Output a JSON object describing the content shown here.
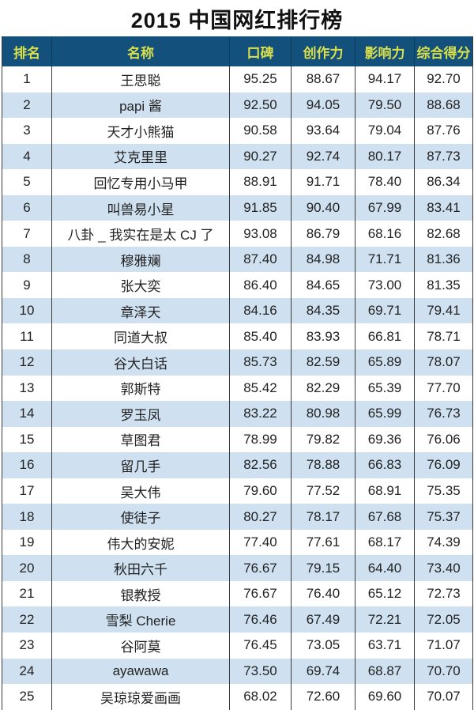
{
  "title": "2015 中国网红排行榜",
  "colors": {
    "header_bg": "#14507c",
    "header_text": "#d8e04b",
    "header_line": "#0d3c5e",
    "row_bg": "#ffffff",
    "row_alt_bg": "#cfe1f0",
    "cell_text": "#222222",
    "grid_line": "#3b3b3b"
  },
  "table": {
    "columns": [
      "排名",
      "名称",
      "口碑",
      "创作力",
      "影响力",
      "综合得分"
    ],
    "rows": [
      [
        "1",
        "王思聪",
        "95.25",
        "88.67",
        "94.17",
        "92.70"
      ],
      [
        "2",
        "papi 酱",
        "92.50",
        "94.05",
        "79.50",
        "88.68"
      ],
      [
        "3",
        "天才小熊猫",
        "90.58",
        "93.64",
        "79.04",
        "87.76"
      ],
      [
        "4",
        "艾克里里",
        "90.27",
        "92.74",
        "80.17",
        "87.73"
      ],
      [
        "5",
        "回忆专用小马甲",
        "88.91",
        "91.71",
        "78.40",
        "86.34"
      ],
      [
        "6",
        "叫兽易小星",
        "91.85",
        "90.40",
        "67.99",
        "83.41"
      ],
      [
        "7",
        "八卦 _ 我实在是太 CJ 了",
        "93.08",
        "86.79",
        "68.16",
        "82.68"
      ],
      [
        "8",
        "穆雅斓",
        "87.40",
        "84.98",
        "71.71",
        "81.36"
      ],
      [
        "9",
        "张大奕",
        "86.40",
        "84.65",
        "73.00",
        "81.35"
      ],
      [
        "10",
        "章泽天",
        "84.16",
        "84.35",
        "69.71",
        "79.41"
      ],
      [
        "11",
        "同道大叔",
        "85.40",
        "83.93",
        "66.81",
        "78.71"
      ],
      [
        "12",
        "谷大白话",
        "85.73",
        "82.59",
        "65.89",
        "78.07"
      ],
      [
        "13",
        "郭斯特",
        "85.42",
        "82.29",
        "65.39",
        "77.70"
      ],
      [
        "14",
        "罗玉凤",
        "83.22",
        "80.98",
        "65.99",
        "76.73"
      ],
      [
        "15",
        "草图君",
        "78.99",
        "79.82",
        "69.36",
        "76.06"
      ],
      [
        "16",
        "留几手",
        "82.56",
        "78.88",
        "66.83",
        "76.09"
      ],
      [
        "17",
        "吴大伟",
        "79.60",
        "77.52",
        "68.91",
        "75.35"
      ],
      [
        "18",
        "使徒子",
        "80.27",
        "78.17",
        "67.68",
        "75.37"
      ],
      [
        "19",
        "伟大的安妮",
        "77.40",
        "77.61",
        "68.17",
        "74.39"
      ],
      [
        "20",
        "秋田六千",
        "76.67",
        "79.15",
        "64.40",
        "73.40"
      ],
      [
        "21",
        "银教授",
        "76.67",
        "76.40",
        "65.12",
        "72.73"
      ],
      [
        "22",
        "雪梨 Cherie",
        "76.46",
        "67.49",
        "72.21",
        "72.05"
      ],
      [
        "23",
        "谷阿莫",
        "76.45",
        "73.05",
        "63.71",
        "71.07"
      ],
      [
        "24",
        "ayawawa",
        "73.50",
        "69.74",
        "68.87",
        "70.70"
      ],
      [
        "25",
        "吴琼琼爱画画",
        "68.02",
        "72.60",
        "69.60",
        "70.07"
      ]
    ]
  },
  "chart_data": {
    "type": "table",
    "title": "2015 中国网红排行榜",
    "columns": [
      "排名",
      "名称",
      "口碑",
      "创作力",
      "影响力",
      "综合得分"
    ],
    "categories": [
      "王思聪",
      "papi 酱",
      "天才小熊猫",
      "艾克里里",
      "回忆专用小马甲",
      "叫兽易小星",
      "八卦 _ 我实在是太 CJ 了",
      "穆雅斓",
      "张大奕",
      "章泽天",
      "同道大叔",
      "谷大白话",
      "郭斯特",
      "罗玉凤",
      "草图君",
      "留几手",
      "吴大伟",
      "使徒子",
      "伟大的安妮",
      "秋田六千",
      "银教授",
      "雪梨 Cherie",
      "谷阿莫",
      "ayawawa",
      "吴琼琼爱画画"
    ],
    "series": [
      {
        "name": "口碑",
        "values": [
          95.25,
          92.5,
          90.58,
          90.27,
          88.91,
          91.85,
          93.08,
          87.4,
          86.4,
          84.16,
          85.4,
          85.73,
          85.42,
          83.22,
          78.99,
          82.56,
          79.6,
          80.27,
          77.4,
          76.67,
          76.67,
          76.46,
          76.45,
          73.5,
          68.02
        ]
      },
      {
        "name": "创作力",
        "values": [
          88.67,
          94.05,
          93.64,
          92.74,
          91.71,
          90.4,
          86.79,
          84.98,
          84.65,
          84.35,
          83.93,
          82.59,
          82.29,
          80.98,
          79.82,
          78.88,
          77.52,
          78.17,
          77.61,
          79.15,
          76.4,
          67.49,
          73.05,
          69.74,
          72.6
        ]
      },
      {
        "name": "影响力",
        "values": [
          94.17,
          79.5,
          79.04,
          80.17,
          78.4,
          67.99,
          68.16,
          71.71,
          73.0,
          69.71,
          66.81,
          65.89,
          65.39,
          65.99,
          69.36,
          66.83,
          68.91,
          67.68,
          68.17,
          64.4,
          65.12,
          72.21,
          63.71,
          68.87,
          69.6
        ]
      },
      {
        "name": "综合得分",
        "values": [
          92.7,
          88.68,
          87.76,
          87.73,
          86.34,
          83.41,
          82.68,
          81.36,
          81.35,
          79.41,
          78.71,
          78.07,
          77.7,
          76.73,
          76.06,
          76.09,
          75.35,
          75.37,
          74.39,
          73.4,
          72.73,
          72.05,
          71.07,
          70.7,
          70.07
        ]
      }
    ],
    "legend_position": "none",
    "grid": true
  }
}
